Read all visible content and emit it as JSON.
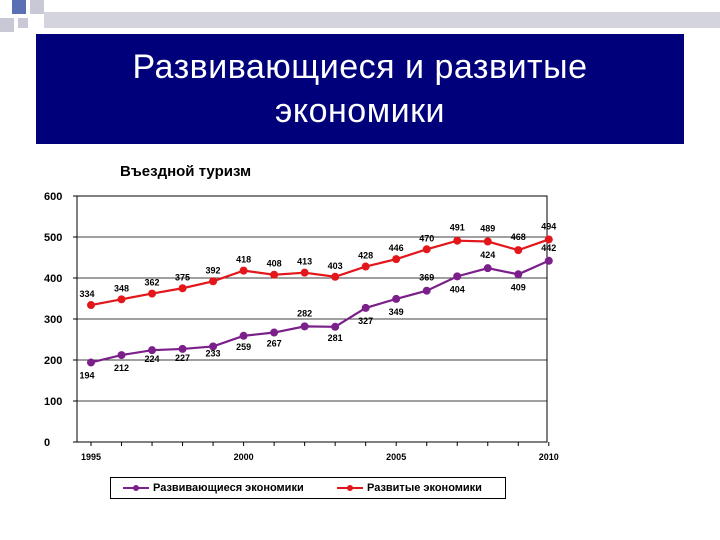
{
  "slide": {
    "title_line1": "Развивающиеся и развитые",
    "title_line2": "экономики",
    "chart_title": "Въездной туризм"
  },
  "colors": {
    "title_bg": "#00007a",
    "developing": "#7b1f8a",
    "developed": "#e3161b",
    "deco_blue": "#5b6fb5",
    "deco_gray": "#c9c9d6"
  },
  "chart_data": {
    "type": "line",
    "title": "Въездной туризм",
    "x": [
      1995,
      1996,
      1997,
      1998,
      1999,
      2000,
      2001,
      2002,
      2003,
      2004,
      2005,
      2006,
      2007,
      2008,
      2009,
      2010
    ],
    "x_tick_labels": [
      "1995",
      "2000",
      "2005",
      "2010"
    ],
    "ylim": [
      0,
      600
    ],
    "y_ticks": [
      0,
      100,
      200,
      300,
      400,
      500,
      600
    ],
    "grid": true,
    "legend_position": "bottom",
    "series": [
      {
        "name": "Развивающиеся экономики",
        "color": "#7b1f8a",
        "values": [
          194,
          212,
          224,
          227,
          233,
          259,
          267,
          282,
          281,
          327,
          349,
          369,
          404,
          424,
          409,
          442
        ]
      },
      {
        "name": "Развитые экономики",
        "color": "#e3161b",
        "values": [
          334,
          348,
          362,
          375,
          392,
          418,
          408,
          413,
          403,
          428,
          446,
          470,
          491,
          489,
          468,
          494
        ]
      }
    ]
  }
}
